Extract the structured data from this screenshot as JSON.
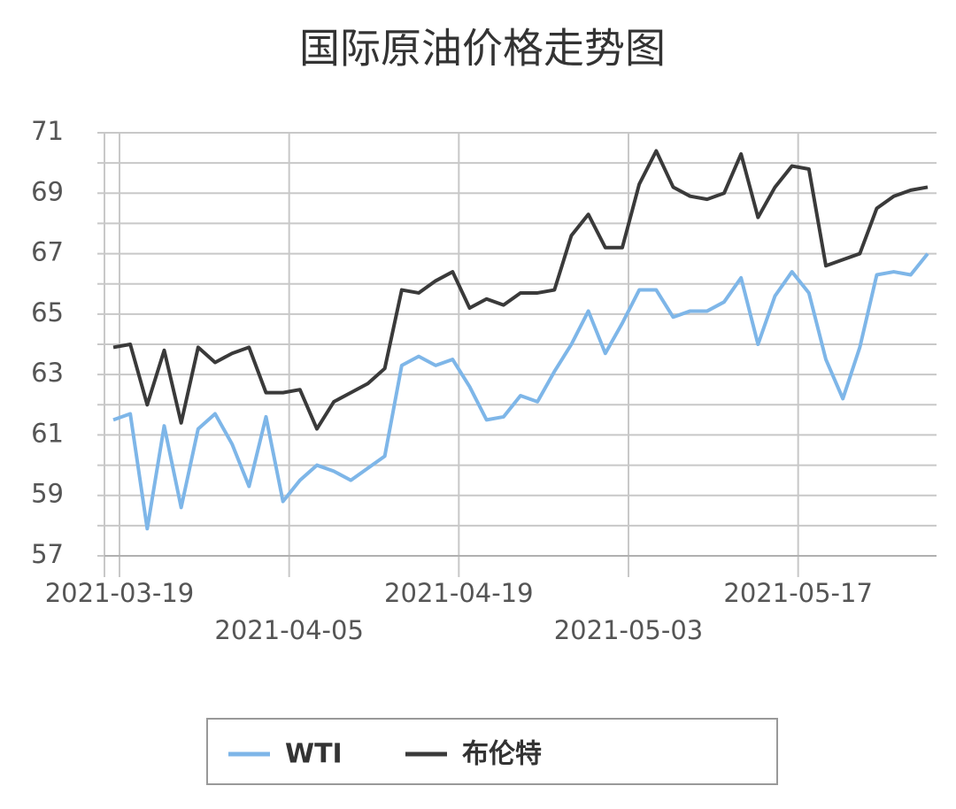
{
  "chart_data": {
    "type": "line",
    "title": "国际原油价格走势图",
    "categories": [
      "2021-03-19",
      null,
      null,
      null,
      null,
      null,
      null,
      null,
      null,
      null,
      "2021-04-05",
      null,
      null,
      null,
      null,
      null,
      null,
      null,
      null,
      null,
      "2021-04-19",
      null,
      null,
      null,
      null,
      null,
      null,
      null,
      null,
      null,
      "2021-05-03",
      null,
      null,
      null,
      null,
      null,
      null,
      null,
      null,
      null,
      "2021-05-17",
      null,
      null,
      null,
      null,
      null,
      null,
      null,
      null
    ],
    "series": [
      {
        "name": "WTI",
        "color": "#7eb6e8",
        "values": [
          61.5,
          61.7,
          57.9,
          61.3,
          58.6,
          61.2,
          61.7,
          60.7,
          59.3,
          61.6,
          58.8,
          59.5,
          60.0,
          59.8,
          59.5,
          59.9,
          60.3,
          63.3,
          63.6,
          63.3,
          63.5,
          62.6,
          61.5,
          61.6,
          62.3,
          62.1,
          63.1,
          64.0,
          65.1,
          63.7,
          64.7,
          65.8,
          65.8,
          64.9,
          65.1,
          65.1,
          65.4,
          66.2,
          64.0,
          65.6,
          66.4,
          65.7,
          63.5,
          62.2,
          63.9,
          66.3,
          66.4,
          66.3,
          67.0
        ]
      },
      {
        "name": "布伦特",
        "color": "#3a3a3a",
        "values": [
          63.9,
          64.0,
          62.0,
          63.8,
          61.4,
          63.9,
          63.4,
          63.7,
          63.9,
          62.4,
          62.4,
          62.5,
          61.2,
          62.1,
          62.4,
          62.7,
          63.2,
          65.8,
          65.7,
          66.1,
          66.4,
          65.2,
          65.5,
          65.3,
          65.7,
          65.7,
          65.8,
          67.6,
          68.3,
          67.2,
          67.2,
          69.3,
          70.4,
          69.2,
          68.9,
          68.8,
          69.0,
          70.3,
          68.2,
          69.2,
          69.9,
          69.8,
          66.6,
          66.8,
          67.0,
          68.5,
          68.9,
          69.1,
          69.2
        ]
      }
    ],
    "ylim": [
      57,
      71
    ],
    "yticks": [
      57,
      59,
      61,
      63,
      65,
      67,
      69,
      71
    ],
    "y_minor_ticks": [
      58,
      60,
      62,
      64,
      66,
      68,
      70
    ],
    "grid": true,
    "legend": "bottom"
  }
}
